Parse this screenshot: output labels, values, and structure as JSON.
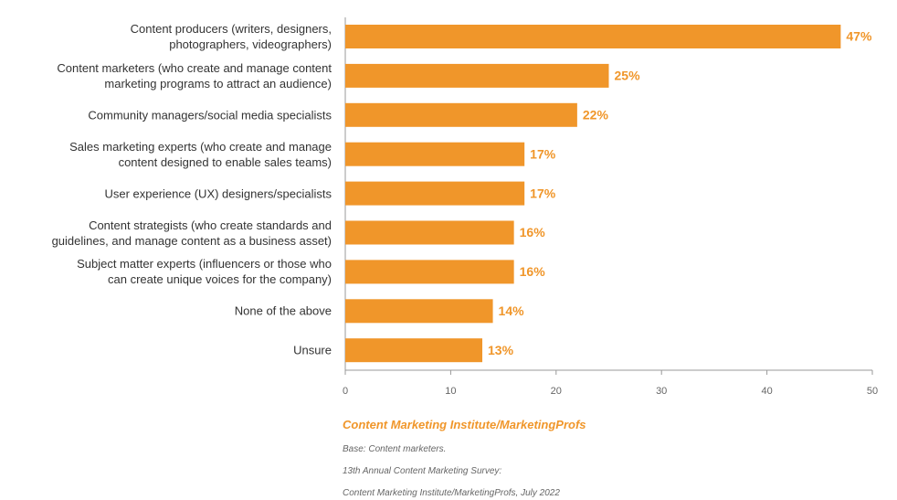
{
  "chart_data": {
    "type": "hbar",
    "categories": [
      "Content producers  (writers, designers,\nphotographers, videographers)",
      "Content marketers  (who create and manage content\nmarketing programs to attract an audience)",
      "Community managers/social media specialists",
      "Sales marketing experts (who create and manage\ncontent designed to enable sales teams)",
      "User experience (UX) designers/specialists",
      "Content strategists (who create standards and\nguidelines, and manage content as a business asset)",
      "Subject matter experts (influencers or those who\ncan create unique voices for the company)",
      "None of the above",
      "Unsure"
    ],
    "values": [
      47,
      25,
      22,
      17,
      17,
      16,
      16,
      14,
      13
    ],
    "value_labels": [
      "47%",
      "25%",
      "22%",
      "17%",
      "17%",
      "16%",
      "16%",
      "14%",
      "13%"
    ],
    "color": "#f0962a",
    "xlim": [
      0,
      50
    ],
    "xticks": [
      0,
      10,
      20,
      30,
      40,
      50
    ],
    "source": "Content Marketing Institute/MarketingProfs",
    "notes": [
      "Base: Content marketers.",
      "13th Annual Content Marketing Survey:",
      "Content Marketing Institute/MarketingProfs, July 2022"
    ]
  }
}
